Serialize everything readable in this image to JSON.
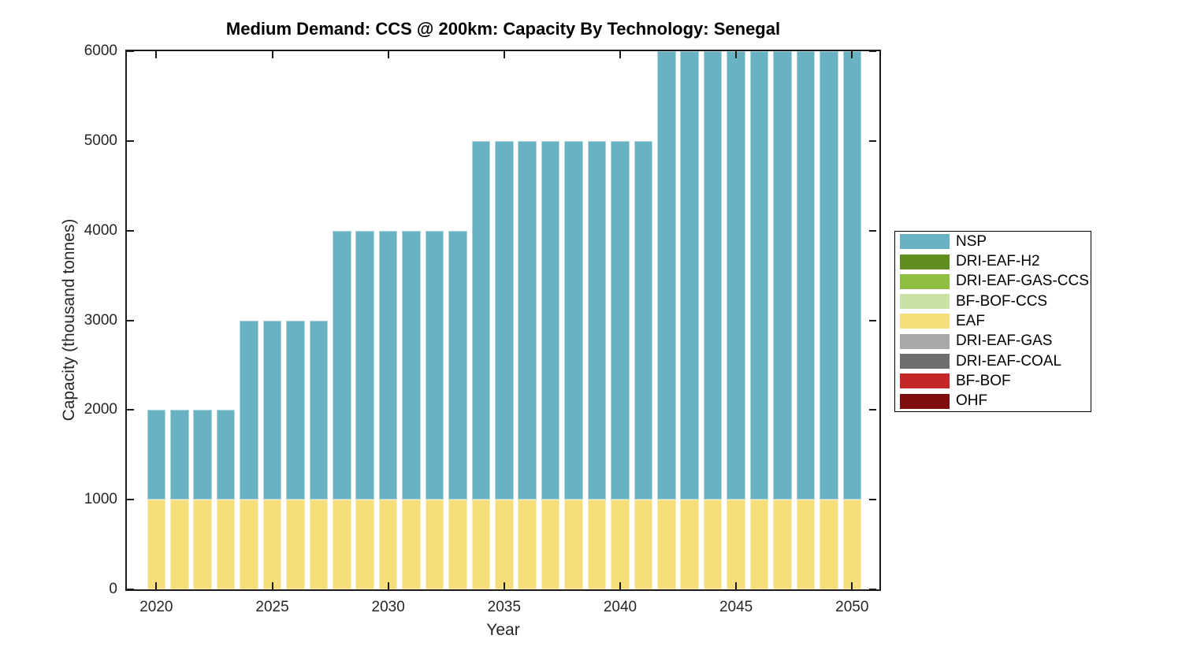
{
  "chart_data": {
    "type": "bar",
    "stacked": true,
    "title": "Medium Demand: CCS @ 200km: Capacity By Technology: Senegal",
    "xlabel": "Year",
    "ylabel": "Capacity (thousand tonnes)",
    "xlim": [
      2018.73,
      2051.18
    ],
    "ylim": [
      0,
      6000
    ],
    "grid": false,
    "bar_width_fraction": 0.8,
    "x_ticks": [
      2020,
      2025,
      2030,
      2035,
      2040,
      2045,
      2050
    ],
    "x_tick_labels": [
      "2020",
      "2025",
      "2030",
      "2035",
      "2040",
      "2045",
      "2050"
    ],
    "y_ticks": [
      0,
      1000,
      2000,
      3000,
      4000,
      5000,
      6000
    ],
    "y_tick_labels": [
      "0",
      "1000",
      "2000",
      "3000",
      "4000",
      "5000",
      "6000"
    ],
    "categories": [
      2020,
      2021,
      2022,
      2023,
      2024,
      2025,
      2026,
      2027,
      2028,
      2029,
      2030,
      2031,
      2032,
      2033,
      2034,
      2035,
      2036,
      2037,
      2038,
      2039,
      2040,
      2041,
      2042,
      2043,
      2044,
      2045,
      2046,
      2047,
      2048,
      2049,
      2050
    ],
    "series": [
      {
        "name": "EAF",
        "color": "#f6de7b",
        "values": [
          1000,
          1000,
          1000,
          1000,
          1000,
          1000,
          1000,
          1000,
          1000,
          1000,
          1000,
          1000,
          1000,
          1000,
          1000,
          1000,
          1000,
          1000,
          1000,
          1000,
          1000,
          1000,
          1000,
          1000,
          1000,
          1000,
          1000,
          1000,
          1000,
          1000,
          1000
        ]
      },
      {
        "name": "NSP",
        "color": "#68b2c3",
        "values": [
          1000,
          1000,
          1000,
          1000,
          2000,
          2000,
          2000,
          2000,
          3000,
          3000,
          3000,
          3000,
          3000,
          3000,
          4000,
          4000,
          4000,
          4000,
          4000,
          4000,
          4000,
          4000,
          5000,
          5000,
          5000,
          5000,
          5000,
          5000,
          5000,
          5000,
          5000
        ]
      }
    ],
    "legend_position": "right-outside",
    "legend": [
      {
        "label": "NSP",
        "color": "#68b2c3"
      },
      {
        "label": "DRI-EAF-H2",
        "color": "#5f8d1e"
      },
      {
        "label": "DRI-EAF-GAS-CCS",
        "color": "#8fbf40"
      },
      {
        "label": "BF-BOF-CCS",
        "color": "#cbe2a4"
      },
      {
        "label": "EAF",
        "color": "#f6de7b"
      },
      {
        "label": "DRI-EAF-GAS",
        "color": "#a8a8a8"
      },
      {
        "label": "DRI-EAF-COAL",
        "color": "#6e6e6e"
      },
      {
        "label": "BF-BOF",
        "color": "#c52727"
      },
      {
        "label": "OHF",
        "color": "#7f0d0e"
      }
    ]
  }
}
